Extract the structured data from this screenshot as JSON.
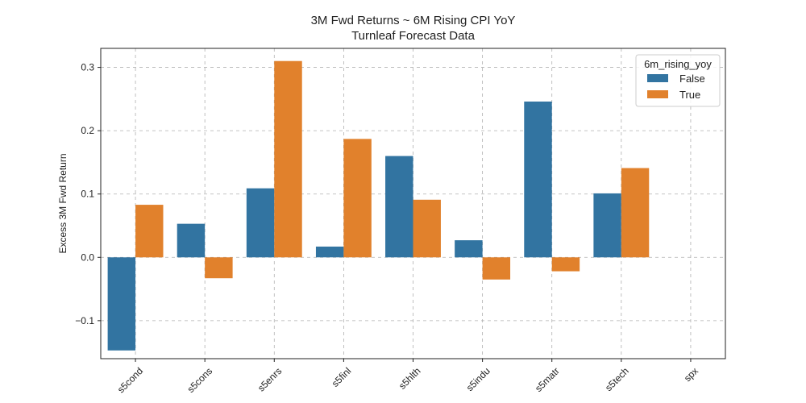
{
  "chart_data": {
    "type": "bar",
    "title": "3M Fwd Returns ~ 6M Rising CPI YoY",
    "subtitle": "Turnleaf Forecast Data",
    "xlabel": "",
    "ylabel": "Excess 3M Fwd Return",
    "categories": [
      "s5cond",
      "s5cons",
      "s5enrs",
      "s5finl",
      "s5hlth",
      "s5indu",
      "s5matr",
      "s5tech",
      "spx"
    ],
    "series": [
      {
        "name": "False",
        "color": "#3274a1",
        "values": [
          -0.147,
          0.053,
          0.109,
          0.017,
          0.16,
          0.027,
          0.246,
          0.101,
          null
        ]
      },
      {
        "name": "True",
        "color": "#e1812c",
        "values": [
          0.083,
          -0.033,
          0.31,
          0.187,
          0.091,
          -0.035,
          -0.022,
          0.141,
          null
        ]
      }
    ],
    "yticks": [
      -0.1,
      0.0,
      0.1,
      0.2,
      0.3
    ],
    "ytick_labels": [
      "−0.1",
      "0.0",
      "0.1",
      "0.2",
      "0.3"
    ],
    "ylim": [
      -0.16,
      0.33
    ],
    "grid": true,
    "legend": {
      "title": "6m_rising_yoy",
      "placement": "top-right"
    }
  }
}
